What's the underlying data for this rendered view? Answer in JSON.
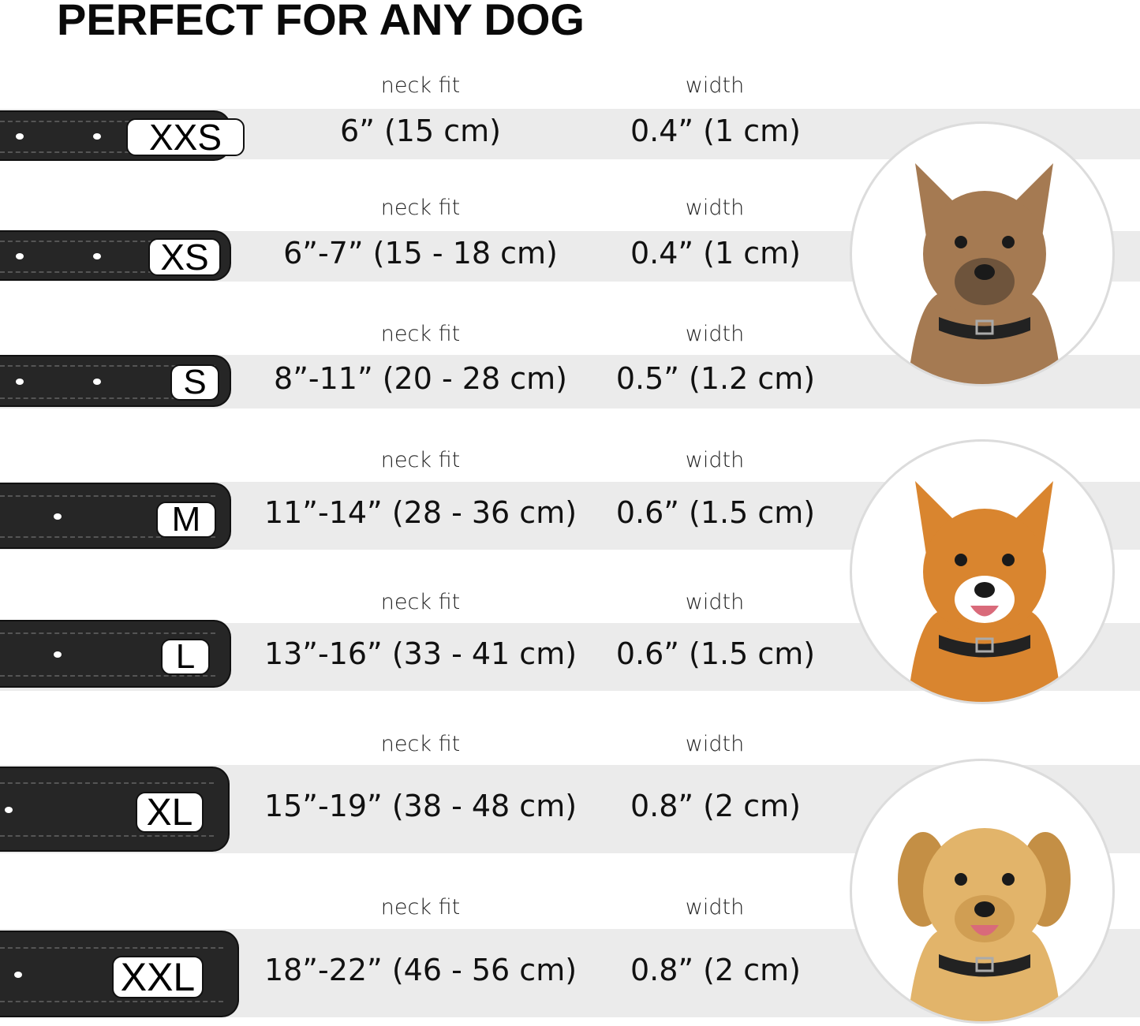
{
  "title": "PERFECT FOR ANY DOG",
  "neck_fit_label": "neck fit",
  "width_label": "width",
  "sizes": [
    {
      "size": "XXS",
      "neck_fit": "6” (15 cm)",
      "width": "0.4” (1 cm)"
    },
    {
      "size": "XS",
      "neck_fit": "6”-7” (15 - 18 cm)",
      "width": "0.4” (1 cm)"
    },
    {
      "size": "S",
      "neck_fit": "8”-11” (20 - 28 cm)",
      "width": "0.5” (1.2 cm)"
    },
    {
      "size": "M",
      "neck_fit": "11”-14” (28 - 36 cm)",
      "width": "0.6” (1.5 cm)"
    },
    {
      "size": "L",
      "neck_fit": "13”-16” (33 - 41 cm)",
      "width": "0.6” (1.5 cm)"
    },
    {
      "size": "XL",
      "neck_fit": "15”-19” (38 - 48 cm)",
      "width": "0.8” (2 cm)"
    },
    {
      "size": "XXL",
      "neck_fit": "18”-22” (46 - 56 cm)",
      "width": "0.8” (2 cm)"
    }
  ],
  "dogs": [
    {
      "icon": "terrier-dog-photo",
      "fur": "#a57a52",
      "dark": "#4a3a2e"
    },
    {
      "icon": "corgi-dog-photo",
      "fur": "#d9852f",
      "dark": "#ffffff"
    },
    {
      "icon": "labrador-dog-photo",
      "fur": "#e2b46a",
      "dark": "#c48f45"
    }
  ],
  "colors": {
    "band": "#ebebeb",
    "collar": "#262626",
    "text": "#111111"
  }
}
